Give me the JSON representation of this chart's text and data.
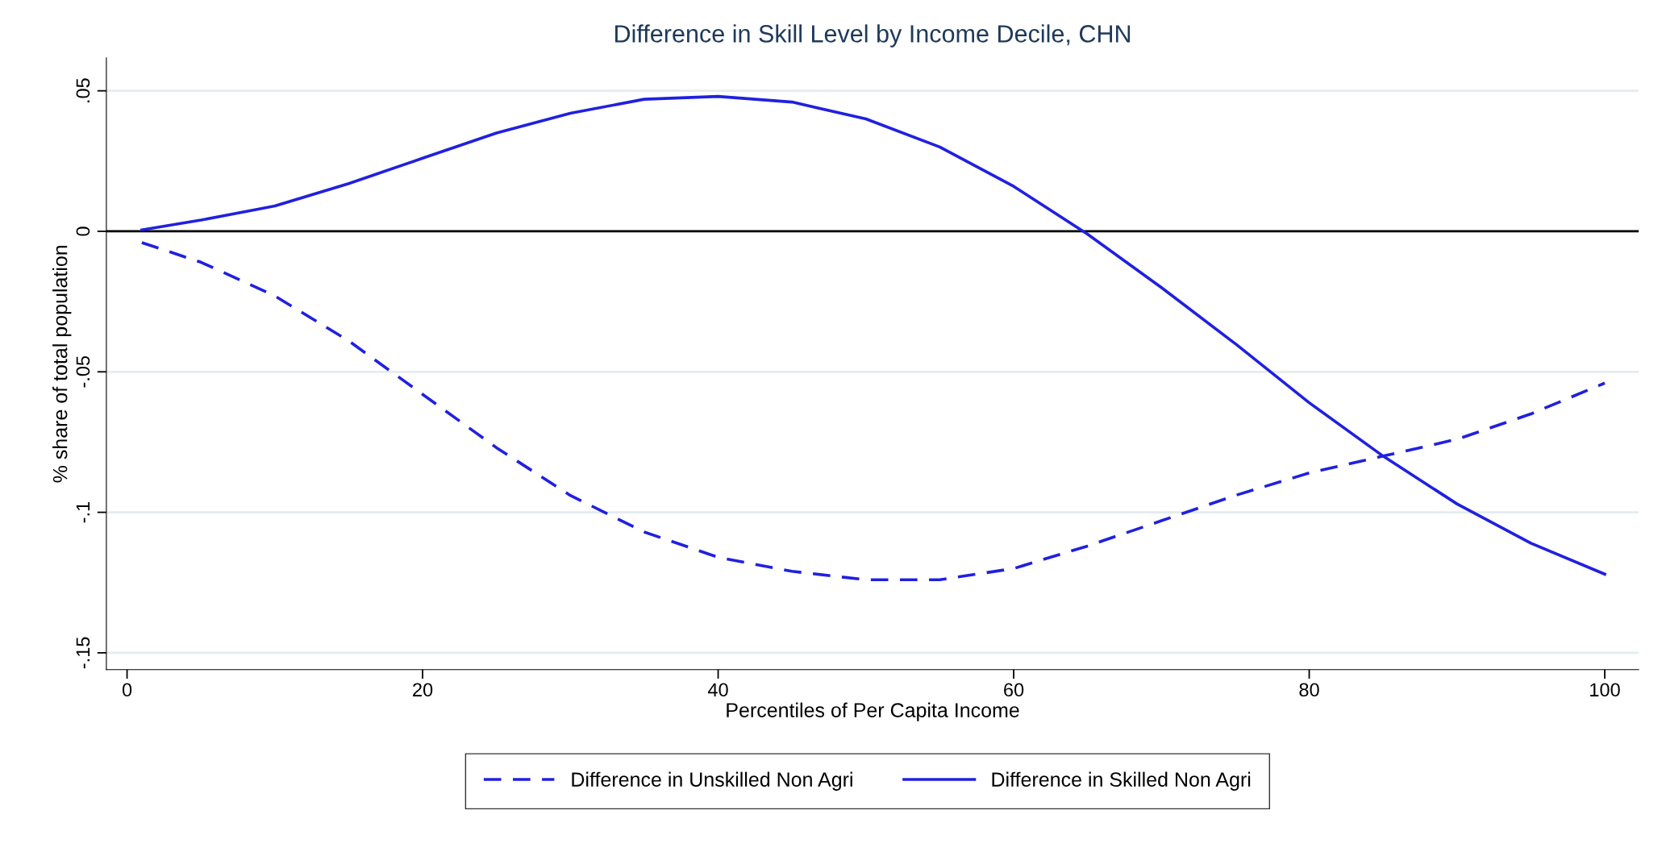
{
  "chart_data": {
    "type": "line",
    "title": "Difference in Skill Level by Income Decile, CHN",
    "xlabel": "Percentiles of Per Capita Income",
    "ylabel": "% share of total population",
    "x": [
      1,
      5,
      10,
      15,
      20,
      25,
      30,
      35,
      40,
      45,
      50,
      55,
      60,
      65,
      70,
      75,
      80,
      85,
      90,
      95,
      100
    ],
    "series": [
      {
        "name": "Difference in Unskilled Non Agri",
        "color": "#2020e0",
        "line_style": "dashed",
        "values": [
          -0.004,
          -0.011,
          -0.023,
          -0.039,
          -0.058,
          -0.077,
          -0.094,
          -0.107,
          -0.116,
          -0.121,
          -0.124,
          -0.124,
          -0.12,
          -0.112,
          -0.103,
          -0.094,
          -0.086,
          -0.08,
          -0.074,
          -0.065,
          -0.054
        ]
      },
      {
        "name": "Difference in Skilled Non Agri",
        "color": "#2020e0",
        "line_style": "solid",
        "values": [
          0.0005,
          0.004,
          0.009,
          0.017,
          0.026,
          0.035,
          0.042,
          0.047,
          0.048,
          0.046,
          0.04,
          0.03,
          0.016,
          -0.001,
          -0.02,
          -0.04,
          -0.061,
          -0.08,
          -0.097,
          -0.111,
          -0.122
        ]
      }
    ],
    "xlim": [
      -1.4,
      102.3
    ],
    "xticks": [
      0,
      20,
      40,
      60,
      80,
      100
    ],
    "ylim": [
      -0.156,
      0.0617
    ],
    "yticks": [
      {
        "value": 0.05,
        "label": ".05"
      },
      0,
      {
        "value": -0.05,
        "label": "-.05"
      },
      {
        "value": -0.1,
        "label": "-.1"
      },
      {
        "value": -0.15,
        "label": "-.15"
      }
    ],
    "ref_lines": [
      {
        "axis": "y",
        "value": 0,
        "color": "#000000"
      }
    ],
    "grid": "y",
    "legend": "bottom",
    "marker": "none"
  }
}
